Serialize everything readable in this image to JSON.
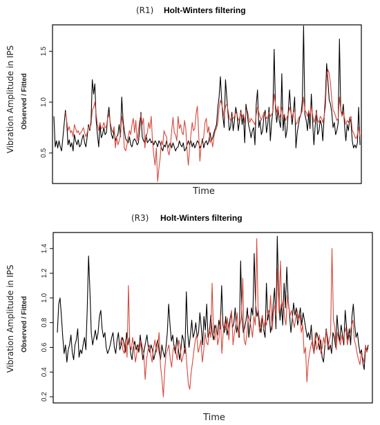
{
  "chart_data": [
    {
      "type": "line",
      "panel_tag": "(R1)",
      "title": "Holt-Winters filtering",
      "ylabel": "Vibration Amplitude in IPS",
      "ylabel_sub": "Observed / Fitted",
      "xlabel": "Time",
      "yticks": [
        0.5,
        1.0,
        1.5
      ],
      "ytick_labels": [
        "0.5",
        "1.0",
        "1.5"
      ],
      "ylim": [
        0.2,
        1.76
      ],
      "series": [
        {
          "color": "#000000",
          "values": [
            0.86,
            0.56,
            0.62,
            0.55,
            0.62,
            0.56,
            0.52,
            0.65,
            0.78,
            0.92,
            0.81,
            0.58,
            0.63,
            0.56,
            0.6,
            0.52,
            0.68,
            0.62,
            0.58,
            0.63,
            0.56,
            0.58,
            0.64,
            0.68,
            0.6,
            0.56,
            0.66,
            0.78,
            0.72,
            0.82,
            1.22,
            1.08,
            1.18,
            0.82,
            0.68,
            0.56,
            0.78,
            0.65,
            0.68,
            0.75,
            0.68,
            0.7,
            0.85,
            0.95,
            0.78,
            0.68,
            0.64,
            0.72,
            0.62,
            0.66,
            0.68,
            0.78,
            0.66,
            1.05,
            0.82,
            0.72,
            0.64,
            0.62,
            0.6,
            0.66,
            0.58,
            0.56,
            0.62,
            0.64,
            0.62,
            0.58,
            0.6,
            0.74,
            0.9,
            0.66,
            0.62,
            0.6,
            0.68,
            0.6,
            0.62,
            0.64,
            0.6,
            0.62,
            0.58,
            0.62,
            0.6,
            0.56,
            0.62,
            0.6,
            0.55,
            0.52,
            0.58,
            0.56,
            0.62,
            0.55,
            0.58,
            0.6,
            0.55,
            0.6,
            0.56,
            0.52,
            0.55,
            0.56,
            0.62,
            0.58,
            0.56,
            0.6,
            0.52,
            0.54,
            0.58,
            0.62,
            0.58,
            0.62,
            0.56,
            0.6,
            0.55,
            0.58,
            0.62,
            0.6,
            0.55,
            0.58,
            0.64,
            0.55,
            0.6,
            0.62,
            0.58,
            0.62,
            0.7,
            0.62,
            0.65,
            0.7,
            0.74,
            0.78,
            0.95,
            1.05,
            1.25,
            1.02,
            0.85,
            0.75,
            1.22,
            1.05,
            0.88,
            0.72,
            0.76,
            0.9,
            0.72,
            0.82,
            0.95,
            0.88,
            0.72,
            0.82,
            0.92,
            0.78,
            0.88,
            0.6,
            0.98,
            0.88,
            0.78,
            0.72,
            0.65,
            0.72,
            0.75,
            0.58,
            0.98,
            1.12,
            0.75,
            0.82,
            0.68,
            0.72,
            0.86,
            0.92,
            0.7,
            0.78,
            0.95,
            0.62,
            0.8,
            0.92,
            1.52,
            0.95,
            0.8,
            0.92,
            0.82,
            0.75,
            1.28,
            0.72,
            0.88,
            0.65,
            0.72,
            0.9,
            1.12,
            0.92,
            0.78,
            0.9,
            1.05,
            0.55,
            0.7,
            0.78,
            0.85,
            0.88,
            1.02,
            1.75,
            0.88,
            0.82,
            0.72,
            0.9,
            0.74,
            1.08,
            0.82,
            0.58,
            0.76,
            0.92,
            0.68,
            0.72,
            0.82,
            0.78,
            0.62,
            0.85,
            1.05,
            1.38,
            1.2,
            1.02,
            0.98,
            0.9,
            0.75,
            0.8,
            0.68,
            0.72,
            0.8,
            1.62,
            0.92,
            0.88,
            0.98,
            0.76,
            0.62,
            0.78,
            0.72,
            0.85,
            0.8,
            0.62,
            0.55,
            0.58,
            0.55,
            0.6,
            0.95,
            0.58
          ],
          "draw": "#000000"
        },
        {
          "color": "#d6473a",
          "values": [
            null,
            null,
            null,
            null,
            null,
            null,
            null,
            null,
            null,
            0.9,
            0.82,
            0.72,
            0.76,
            0.7,
            0.72,
            0.66,
            0.78,
            0.74,
            0.7,
            0.72,
            0.68,
            0.7,
            0.72,
            0.75,
            0.7,
            0.66,
            0.7,
            0.76,
            0.74,
            0.78,
            0.92,
            0.95,
            1.0,
            0.88,
            0.78,
            0.72,
            0.8,
            0.74,
            0.75,
            0.8,
            0.75,
            0.76,
            0.84,
            0.88,
            0.8,
            0.74,
            0.7,
            0.76,
            0.55,
            0.66,
            0.58,
            0.62,
            0.68,
            0.86,
            0.78,
            0.55,
            0.52,
            0.58,
            0.66,
            0.72,
            0.68,
            0.78,
            0.84,
            0.7,
            0.82,
            0.62,
            0.72,
            0.82,
            0.88,
            0.78,
            0.84,
            0.55,
            0.66,
            0.7,
            0.8,
            0.74,
            0.86,
            0.62,
            0.48,
            0.38,
            0.55,
            0.22,
            0.35,
            0.45,
            0.62,
            0.58,
            0.72,
            0.68,
            0.66,
            0.52,
            0.48,
            0.58,
            0.72,
            0.85,
            0.7,
            0.68,
            0.62,
            0.86,
            0.74,
            0.78,
            0.7,
            0.68,
            0.82,
            0.74,
            0.52,
            0.38,
            0.55,
            0.68,
            0.8,
            0.72,
            0.74,
            0.88,
            0.96,
            0.7,
            0.42,
            0.58,
            0.62,
            0.66,
            0.8,
            0.84,
            0.7,
            0.76,
            0.6,
            0.64,
            0.56,
            0.66,
            0.72,
            0.74,
            0.8,
            0.94,
            1.02,
            0.98,
            0.92,
            0.85,
            0.96,
            0.98,
            0.92,
            0.85,
            0.82,
            0.86,
            0.84,
            0.86,
            0.9,
            0.88,
            0.82,
            0.84,
            0.9,
            0.86,
            0.88,
            0.8,
            0.92,
            0.92,
            0.86,
            0.8,
            0.84,
            0.82,
            0.8,
            0.78,
            0.88,
            0.95,
            0.9,
            0.86,
            0.82,
            0.86,
            0.9,
            0.88,
            0.84,
            0.85,
            0.9,
            0.86,
            0.88,
            0.9,
            1.08,
            0.98,
            0.9,
            0.96,
            0.84,
            0.88,
            0.95,
            0.86,
            0.88,
            0.82,
            0.85,
            0.88,
            0.95,
            0.9,
            0.85,
            0.9,
            0.92,
            0.78,
            0.8,
            0.84,
            0.86,
            0.88,
            0.92,
            1.05,
            0.92,
            0.9,
            0.86,
            0.92,
            0.86,
            0.96,
            0.88,
            0.8,
            0.84,
            0.9,
            0.82,
            0.8,
            0.86,
            0.84,
            0.8,
            0.86,
            0.95,
            1.25,
            1.32,
            1.28,
            1.18,
            1.02,
            0.92,
            0.9,
            0.86,
            0.82,
            0.84,
            1.05,
            0.92,
            0.86,
            0.9,
            0.84,
            0.78,
            0.82,
            0.8,
            0.84,
            0.86,
            0.72,
            0.7,
            0.66,
            0.64,
            0.68,
            0.75,
            0.66
          ]
        }
      ]
    },
    {
      "type": "line",
      "panel_tag": "(R3)",
      "title": "Holt-Winters filtering",
      "ylabel": "Vibration Amplitude in IPS",
      "ylabel_sub": "Observed / Fitted",
      "xlabel": "Time",
      "yticks": [
        0.2,
        0.4,
        0.6,
        0.8,
        1.0,
        1.2,
        1.4
      ],
      "ytick_labels": [
        "0.2",
        "0.4",
        "0.6",
        "0.8",
        "1.0",
        "1.2",
        "1.4"
      ],
      "ylim": [
        0.15,
        1.53
      ],
      "series": [
        {
          "color": "#000000",
          "values": [
            0.72,
            0.95,
            1.0,
            0.85,
            0.68,
            0.55,
            0.62,
            0.48,
            0.58,
            0.62,
            0.7,
            0.56,
            0.5,
            0.62,
            0.66,
            0.75,
            0.52,
            0.58,
            0.55,
            0.62,
            0.68,
            0.58,
            0.9,
            1.34,
            1.05,
            0.72,
            0.62,
            0.68,
            0.74,
            0.66,
            0.72,
            0.85,
            0.9,
            0.75,
            0.68,
            0.72,
            0.6,
            0.55,
            0.58,
            0.62,
            0.68,
            0.72,
            0.6,
            0.55,
            0.66,
            0.72,
            0.58,
            0.62,
            0.68,
            0.64,
            0.56,
            0.72,
            0.62,
            0.68,
            0.55,
            0.5,
            0.6,
            0.65,
            0.58,
            0.62,
            0.56,
            0.7,
            0.6,
            0.5,
            0.58,
            0.64,
            0.7,
            0.6,
            0.56,
            0.62,
            0.58,
            0.5,
            0.55,
            0.62,
            0.66,
            0.56,
            0.5,
            0.62,
            0.56,
            0.52,
            0.6,
            0.72,
            0.95,
            0.78,
            0.65,
            0.7,
            0.6,
            0.55,
            0.68,
            0.6,
            0.5,
            0.58,
            0.7,
            0.66,
            0.55,
            1.05,
            0.72,
            0.6,
            0.7,
            0.82,
            0.68,
            0.72,
            0.8,
            0.68,
            0.72,
            0.88,
            0.76,
            0.62,
            0.85,
            0.74,
            0.95,
            0.68,
            0.72,
            0.86,
            0.72,
            0.66,
            0.78,
            0.74,
            0.7,
            0.82,
            0.75,
            1.1,
            0.78,
            0.72,
            0.85,
            0.7,
            0.76,
            0.82,
            0.88,
            0.76,
            0.8,
            0.92,
            0.72,
            0.78,
            0.68,
            1.3,
            0.85,
            0.72,
            0.76,
            0.82,
            0.92,
            0.68,
            0.78,
            0.92,
            0.86,
            1.36,
            0.95,
            0.85,
            0.9,
            0.78,
            0.72,
            0.85,
            0.74,
            0.68,
            1.12,
            0.82,
            0.9,
            0.72,
            0.78,
            0.95,
            1.08,
            0.75,
            1.5,
            1.05,
            0.82,
            0.95,
            0.78,
            1.12,
            0.92,
            1.25,
            0.98,
            0.88,
            0.72,
            0.82,
            0.96,
            0.86,
            0.92,
            0.78,
            0.85,
            0.92,
            0.78,
            0.88,
            0.82,
            0.75,
            0.68,
            0.72,
            0.66,
            0.78,
            0.62,
            0.55,
            0.64,
            0.72,
            0.68,
            0.58,
            0.66,
            0.52,
            0.48,
            0.6,
            0.75,
            0.68,
            0.58,
            0.62,
            0.55,
            0.72,
            0.68,
            0.6,
            0.86,
            0.72,
            0.65,
            0.78,
            0.7,
            0.62,
            0.9,
            0.76,
            0.66,
            0.75,
            0.62,
            0.85,
            0.95,
            0.78,
            0.68,
            0.72,
            0.62,
            0.55,
            0.58,
            0.48,
            0.42,
            0.6,
            0.58,
            0.62
          ]
        },
        {
          "color": "#d6473a",
          "values": [
            null,
            null,
            null,
            null,
            null,
            null,
            null,
            null,
            null,
            null,
            null,
            null,
            null,
            null,
            null,
            null,
            null,
            null,
            null,
            null,
            null,
            null,
            null,
            null,
            null,
            null,
            null,
            null,
            null,
            null,
            null,
            null,
            null,
            null,
            null,
            null,
            null,
            null,
            null,
            null,
            null,
            null,
            null,
            null,
            null,
            0.62,
            0.68,
            0.58,
            0.55,
            0.66,
            0.52,
            1.1,
            0.62,
            0.58,
            0.68,
            0.6,
            0.48,
            0.55,
            0.62,
            0.58,
            0.66,
            0.6,
            0.55,
            0.34,
            0.5,
            0.58,
            0.62,
            0.54,
            0.48,
            0.6,
            0.66,
            0.56,
            0.62,
            0.72,
            0.45,
            0.35,
            0.2,
            0.42,
            0.55,
            0.58,
            0.62,
            0.5,
            0.44,
            0.58,
            0.62,
            0.56,
            0.5,
            0.66,
            0.62,
            0.48,
            0.52,
            0.58,
            0.6,
            0.44,
            0.3,
            0.26,
            0.4,
            0.48,
            0.58,
            0.66,
            0.7,
            0.56,
            0.6,
            0.66,
            0.48,
            0.58,
            0.72,
            0.64,
            0.62,
            0.75,
            0.68,
            1.12,
            0.72,
            0.66,
            0.78,
            0.62,
            0.68,
            0.86,
            0.55,
            0.72,
            0.8,
            0.74,
            0.84,
            0.66,
            0.82,
            0.9,
            0.62,
            0.72,
            0.78,
            0.88,
            0.68,
            0.78,
            0.84,
            1.16,
            0.66,
            0.62,
            0.72,
            0.86,
            0.82,
            0.76,
            0.68,
            0.85,
            0.78,
            1.48,
            0.88,
            0.72,
            0.8,
            0.86,
            0.75,
            0.82,
            0.78,
            0.9,
            0.86,
            1.02,
            0.74,
            0.88,
            0.95,
            0.85,
            1.24,
            0.88,
            1.3,
            0.92,
            0.98,
            0.84,
            0.78,
            1.02,
            0.92,
            0.86,
            0.9,
            0.82,
            0.76,
            0.84,
            0.9,
            0.82,
            0.86,
            0.72,
            0.78,
            0.55,
            0.6,
            0.32,
            0.48,
            0.56,
            0.62,
            0.66,
            0.55,
            0.72,
            0.58,
            0.62,
            0.7,
            0.55,
            0.6,
            0.68,
            0.62,
            0.74,
            0.58,
            0.66,
            0.7,
            1.4,
            0.82,
            0.76,
            0.58,
            0.72,
            0.66,
            0.62,
            0.7,
            0.64,
            0.72,
            0.76,
            0.62,
            0.68,
            0.72,
            0.78,
            0.82,
            0.66,
            0.62,
            0.55,
            0.5,
            0.46,
            0.55,
            0.52,
            0.48,
            0.62,
            0.56,
            0.6
          ]
        }
      ]
    }
  ]
}
